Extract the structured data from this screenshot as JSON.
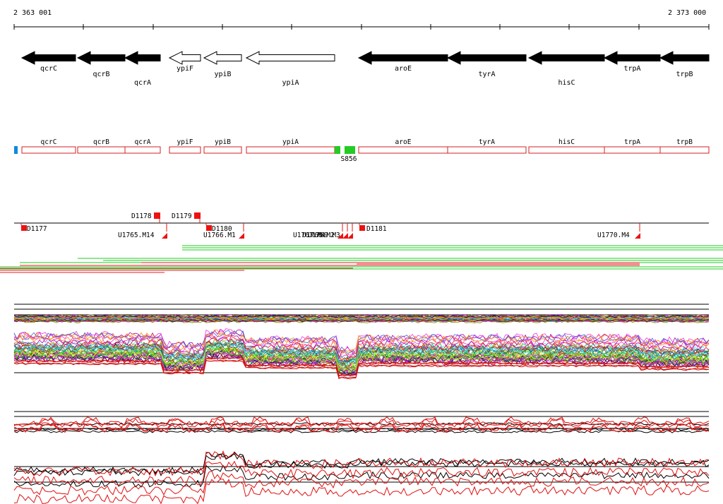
{
  "coords": {
    "start_label": "2 363 001",
    "end_label": "2 373 000"
  },
  "colors": {
    "gene_fill": "#000000",
    "feature_outline": "#d42020",
    "marker": "#ee1111",
    "green": "#22cc22",
    "blue": "#1188dd"
  },
  "genes": [
    {
      "name": "qcrC",
      "filled": true
    },
    {
      "name": "qcrB",
      "filled": true
    },
    {
      "name": "qcrA",
      "filled": true
    },
    {
      "name": "ypiF",
      "filled": false
    },
    {
      "name": "ypiB",
      "filled": false
    },
    {
      "name": "ypiA",
      "filled": false
    },
    {
      "name": "aroE",
      "filled": true
    },
    {
      "name": "tyrA",
      "filled": true
    },
    {
      "name": "hisC",
      "filled": true
    },
    {
      "name": "trpA",
      "filled": true
    },
    {
      "name": "trpB",
      "filled": true
    }
  ],
  "features": [
    "qcrC",
    "qcrB",
    "qcrA",
    "ypiF",
    "ypiB",
    "ypiA",
    "aroE",
    "tyrA",
    "hisC",
    "trpA",
    "trpB"
  ],
  "feature_extra": {
    "s_label": "S856"
  },
  "markers": [
    {
      "label": "D1177"
    },
    {
      "label": "D1178"
    },
    {
      "label": "D1179"
    },
    {
      "label": "D1180"
    },
    {
      "label": "D1181"
    },
    {
      "label": "U1765.M14"
    },
    {
      "label": "U1766.M1"
    },
    {
      "label": "U1767.M4"
    },
    {
      "label": "U1768.M2"
    },
    {
      "label": "U1769.M3"
    },
    {
      "label": "U1770.M4"
    }
  ]
}
